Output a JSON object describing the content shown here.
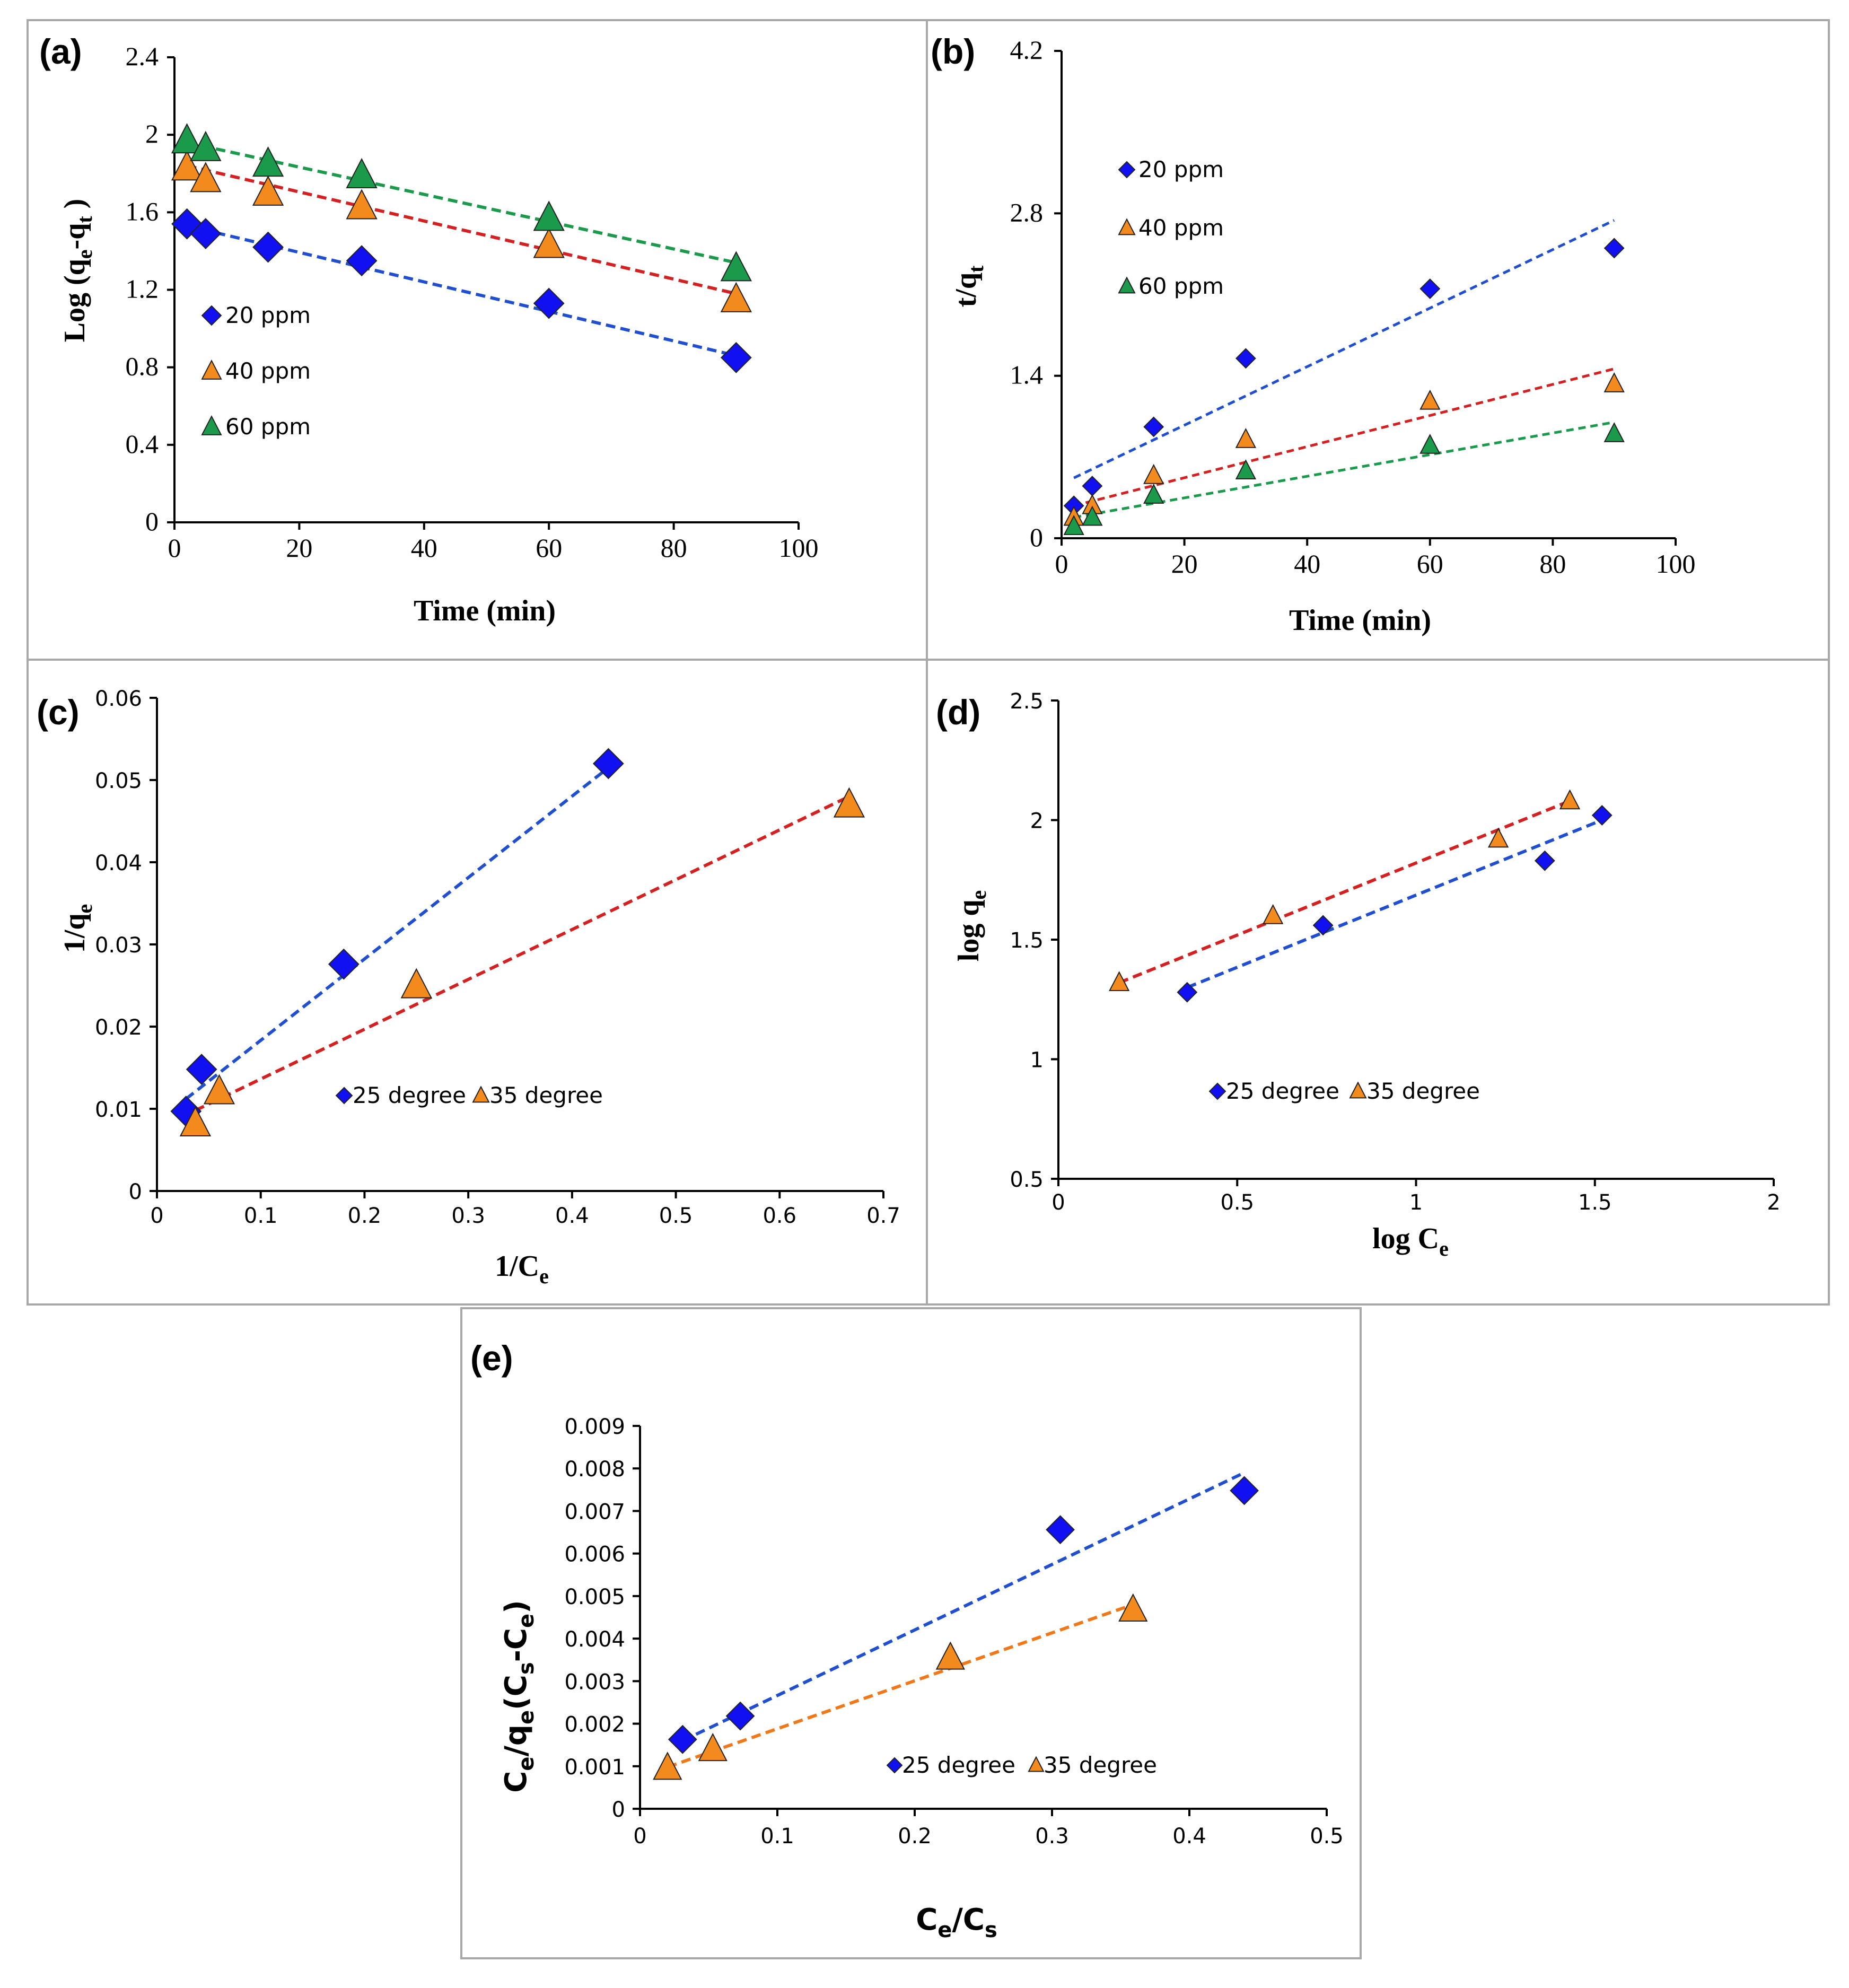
{
  "colors": {
    "blue": "#1010f0",
    "orange": "#f28a1e",
    "green": "#1a9a4a",
    "fit_blue": "#1f4fd0",
    "fit_red": "#d42020",
    "fit_green": "#1a9a4a",
    "fit_orange": "#f07818"
  },
  "chart_data": [
    {
      "id": "a",
      "type": "scatter",
      "panel_label": "(a)",
      "xlabel": "Time (min)",
      "ylabel_main": "Log (q",
      "ylabel_sub1": "e",
      "ylabel_mid": "-q",
      "ylabel_sub2": "t",
      "ylabel_end": " )",
      "xlim": [
        0,
        100
      ],
      "ylim": [
        0,
        2.4
      ],
      "xticks": [
        0,
        20,
        40,
        60,
        80,
        100
      ],
      "yticks": [
        0,
        0.4,
        0.8,
        1.2,
        1.6,
        2,
        2.4
      ],
      "ytick_labels": [
        "0",
        "0.4",
        "0.8",
        "1.2",
        "1.6",
        "2",
        "2.4"
      ],
      "series": [
        {
          "name": "20 ppm",
          "marker": "diamond",
          "color": "#1010f0",
          "fit_color": "#1f4fd0",
          "x": [
            2,
            5,
            15,
            30,
            60,
            90
          ],
          "y": [
            1.54,
            1.49,
            1.42,
            1.35,
            1.13,
            0.85
          ],
          "fit": [
            [
              2,
              1.53
            ],
            [
              90,
              0.86
            ]
          ]
        },
        {
          "name": "40 ppm",
          "marker": "triangle",
          "color": "#f28a1e",
          "fit_color": "#d42020",
          "x": [
            2,
            5,
            15,
            30,
            60,
            90
          ],
          "y": [
            1.83,
            1.77,
            1.7,
            1.63,
            1.43,
            1.15
          ],
          "fit": [
            [
              2,
              1.84
            ],
            [
              90,
              1.18
            ]
          ]
        },
        {
          "name": "60 ppm",
          "marker": "triangle",
          "color": "#1a9a4a",
          "fit_color": "#1a9a4a",
          "x": [
            2,
            5,
            15,
            30,
            60,
            90
          ],
          "y": [
            1.97,
            1.93,
            1.85,
            1.79,
            1.57,
            1.31
          ],
          "fit": [
            [
              2,
              1.96
            ],
            [
              90,
              1.34
            ]
          ]
        }
      ]
    },
    {
      "id": "b",
      "type": "scatter",
      "panel_label": "(b)",
      "xlabel": "Time (min)",
      "ylabel_main": "t/q",
      "ylabel_sub1": "t",
      "xlim": [
        0,
        100
      ],
      "ylim": [
        0,
        4.2
      ],
      "xticks": [
        0,
        20,
        40,
        60,
        80,
        100
      ],
      "yticks": [
        0,
        1.4,
        2.8,
        4.2
      ],
      "ytick_labels": [
        "0",
        "1.4",
        "2.8",
        "4.2"
      ],
      "series": [
        {
          "name": "20 ppm",
          "marker": "diamond",
          "color": "#1010f0",
          "fit_color": "#1f4fd0",
          "x": [
            2,
            5,
            15,
            30,
            60,
            90
          ],
          "y": [
            0.28,
            0.45,
            0.96,
            1.55,
            2.15,
            2.5
          ],
          "fit": [
            [
              2,
              0.52
            ],
            [
              90,
              2.74
            ]
          ]
        },
        {
          "name": "40 ppm",
          "marker": "triangle",
          "color": "#f28a1e",
          "fit_color": "#d42020",
          "x": [
            2,
            5,
            15,
            30,
            60,
            90
          ],
          "y": [
            0.18,
            0.28,
            0.54,
            0.85,
            1.18,
            1.33
          ],
          "fit": [
            [
              2,
              0.28
            ],
            [
              90,
              1.46
            ]
          ]
        },
        {
          "name": "60 ppm",
          "marker": "triangle",
          "color": "#1a9a4a",
          "fit_color": "#1a9a4a",
          "x": [
            2,
            5,
            15,
            30,
            60,
            90
          ],
          "y": [
            0.1,
            0.18,
            0.37,
            0.58,
            0.8,
            0.9
          ],
          "fit": [
            [
              2,
              0.18
            ],
            [
              90,
              1.0
            ]
          ]
        }
      ]
    },
    {
      "id": "c",
      "type": "scatter",
      "panel_label": "(c)",
      "xlabel_main": "1/C",
      "xlabel_sub": "e",
      "ylabel_main": "1/q",
      "ylabel_sub1": "e",
      "xlim": [
        0,
        0.7
      ],
      "ylim": [
        0,
        0.06
      ],
      "xticks": [
        0,
        0.1,
        0.2,
        0.3,
        0.4,
        0.5,
        0.6,
        0.7
      ],
      "xtick_labels": [
        "0",
        "0.1",
        "0.2",
        "0.3",
        "0.4",
        "0.5",
        "0.6",
        "0.7"
      ],
      "yticks": [
        0,
        0.01,
        0.02,
        0.03,
        0.04,
        0.05,
        0.06
      ],
      "ytick_labels": [
        "0",
        "0.01",
        "0.02",
        "0.03",
        "0.04",
        "0.05",
        "0.06"
      ],
      "series": [
        {
          "name": "25 degree",
          "marker": "diamond",
          "color": "#1010f0",
          "fit_color": "#1f4fd0",
          "x": [
            0.028,
            0.043,
            0.18,
            0.435
          ],
          "y": [
            0.0097,
            0.0148,
            0.0276,
            0.052
          ],
          "fit": [
            [
              0.028,
              0.0112
            ],
            [
              0.435,
              0.0515
            ]
          ]
        },
        {
          "name": "35 degree",
          "marker": "triangle",
          "color": "#f28a1e",
          "fit_color": "#d42020",
          "x": [
            0.037,
            0.06,
            0.25,
            0.667
          ],
          "y": [
            0.0082,
            0.0121,
            0.025,
            0.047
          ],
          "fit": [
            [
              0.037,
              0.0098
            ],
            [
              0.667,
              0.048
            ]
          ]
        }
      ]
    },
    {
      "id": "d",
      "type": "scatter",
      "panel_label": "(d)",
      "xlabel_main": "log C",
      "xlabel_sub": "e",
      "ylabel_main": "log q",
      "ylabel_sub1": "e",
      "xlim": [
        0,
        2
      ],
      "ylim": [
        0.5,
        2.5
      ],
      "xticks": [
        0,
        0.5,
        1,
        1.5,
        2
      ],
      "xtick_labels": [
        "0",
        "0.5",
        "1",
        "1.5",
        "2"
      ],
      "yticks": [
        0.5,
        1,
        1.5,
        2,
        2.5
      ],
      "ytick_labels": [
        "0.5",
        "1",
        "1.5",
        "2",
        "2.5"
      ],
      "series": [
        {
          "name": "25 degree",
          "marker": "diamond",
          "color": "#1010f0",
          "fit_color": "#1f4fd0",
          "x": [
            0.36,
            0.74,
            1.36,
            1.52
          ],
          "y": [
            1.28,
            1.56,
            1.83,
            2.02
          ],
          "fit": [
            [
              0.36,
              1.3
            ],
            [
              1.52,
              2.0
            ]
          ]
        },
        {
          "name": "35 degree",
          "marker": "triangle",
          "color": "#f28a1e",
          "fit_color": "#d42020",
          "x": [
            0.17,
            0.6,
            1.23,
            1.43
          ],
          "y": [
            1.32,
            1.6,
            1.92,
            2.08
          ],
          "fit": [
            [
              0.17,
              1.32
            ],
            [
              1.43,
              2.08
            ]
          ]
        }
      ]
    },
    {
      "id": "e",
      "type": "scatter",
      "panel_label": "(e)",
      "xlabel_main": "C",
      "xlabel_sub": "e",
      "xlabel_mid": "/C",
      "xlabel_sub2": "s",
      "ylabel_main": "C",
      "ylabel_sub1": "e",
      "ylabel_mid": "/q",
      "ylabel_sub2": "e",
      "ylabel_mid2": "(C",
      "ylabel_sub3": "s",
      "ylabel_mid3": "-C",
      "ylabel_sub4": "e",
      "ylabel_end": ")",
      "xlim": [
        0,
        0.5
      ],
      "ylim": [
        0,
        0.009
      ],
      "xticks": [
        0,
        0.1,
        0.2,
        0.3,
        0.4,
        0.5
      ],
      "xtick_labels": [
        "0",
        "0.1",
        "0.2",
        "0.3",
        "0.4",
        "0.5"
      ],
      "yticks": [
        0,
        0.001,
        0.002,
        0.003,
        0.004,
        0.005,
        0.006,
        0.007,
        0.008,
        0.009
      ],
      "ytick_labels": [
        "0",
        "0.001",
        "0.002",
        "0.003",
        "0.004",
        "0.005",
        "0.006",
        "0.007",
        "0.008",
        "0.009"
      ],
      "series": [
        {
          "name": "25 degree",
          "marker": "diamond",
          "color": "#1010f0",
          "fit_color": "#1f4fd0",
          "x": [
            0.031,
            0.073,
            0.306,
            0.44
          ],
          "y": [
            0.00163,
            0.00218,
            0.00656,
            0.00748
          ],
          "fit": [
            [
              0.031,
              0.0016
            ],
            [
              0.44,
              0.0079
            ]
          ]
        },
        {
          "name": "35 degree",
          "marker": "triangle",
          "color": "#f28a1e",
          "fit_color": "#f07818",
          "x": [
            0.02,
            0.053,
            0.226,
            0.359
          ],
          "y": [
            0.00096,
            0.0014,
            0.00355,
            0.00468
          ],
          "fit": [
            [
              0.02,
              0.00098
            ],
            [
              0.359,
              0.0048
            ]
          ]
        }
      ]
    }
  ]
}
